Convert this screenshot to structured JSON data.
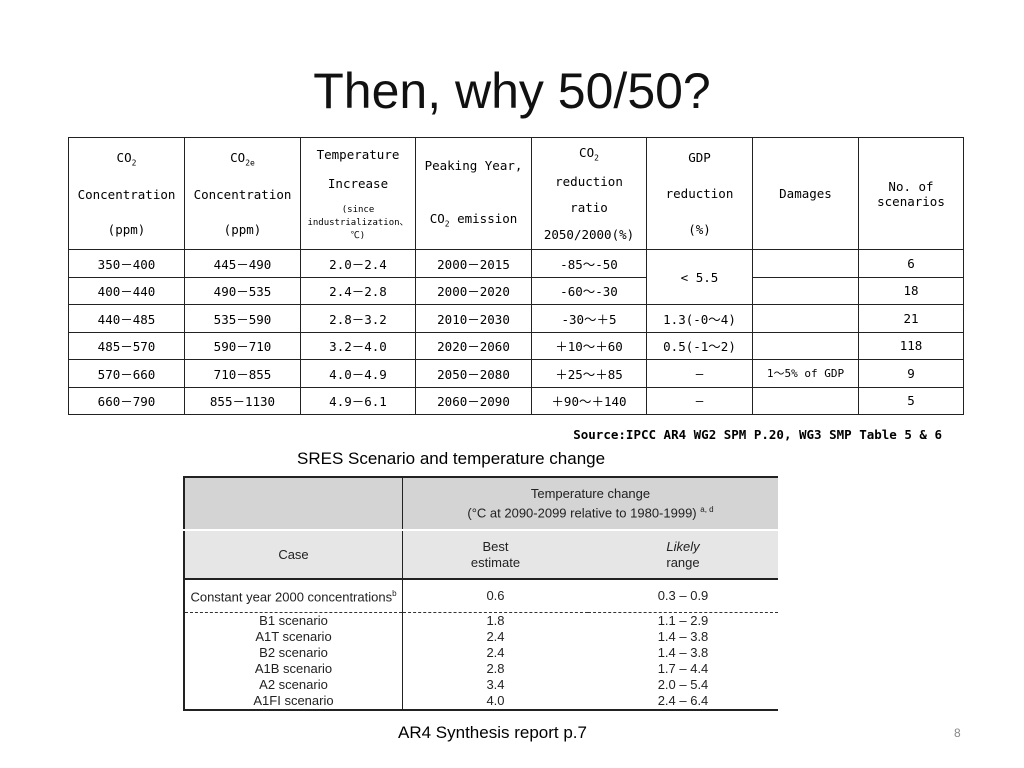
{
  "title": "Then, why 50/50?",
  "table1": {
    "headers": [
      [
        {
          "text": "CO",
          "sub": "2"
        },
        "Concentration",
        "(ppm)"
      ],
      [
        {
          "text": "CO",
          "sub": "2e"
        },
        "Concentration",
        "(ppm)"
      ],
      [
        "Temperature",
        "Increase",
        "(since industrialization、℃)"
      ],
      [
        "Peaking Year,",
        {
          "text": "CO",
          "sub": "2",
          "after": " emission"
        }
      ],
      [
        {
          "text": "CO",
          "sub": "2"
        },
        "reduction",
        "ratio",
        "2050/2000(%)"
      ],
      [
        "GDP",
        "reduction",
        "(%)"
      ],
      [
        "Damages"
      ],
      [
        "No. of scenarios"
      ]
    ],
    "rows": [
      [
        "350－400",
        "445－490",
        "2.0－2.4",
        "2000－2015",
        "-85～-50",
        "< 5.5",
        null,
        "6"
      ],
      [
        "400－440",
        "490－535",
        "2.4－2.8",
        "2000－2020",
        "-60～-30",
        null,
        null,
        "18"
      ],
      [
        "440－485",
        "535－590",
        "2.8－3.2",
        "2010－2030",
        "-30～＋5",
        "1.3(-0～4)",
        null,
        "21"
      ],
      [
        "485－570",
        "590－710",
        "3.2－4.0",
        "2020－2060",
        "＋10～＋60",
        "0.5(-1～2)",
        null,
        "118"
      ],
      [
        "570－660",
        "710－855",
        "4.0－4.9",
        "2050－2080",
        "＋25～＋85",
        "—",
        "1～5% of GDP",
        "9"
      ],
      [
        "660－790",
        "855－1130",
        "4.9－6.1",
        "2060－2090",
        "＋90～＋140",
        "—",
        null,
        "5"
      ]
    ],
    "source": "Source:IPCC AR4 WG2 SPM P.20, WG3 SMP Table 5 & 6"
  },
  "caption1": "SRES Scenario and temperature change",
  "table2": {
    "group_title": "Temperature change",
    "group_note": "(°C at 2090-2099 relative to 1980-1999)",
    "group_sup": "a, d",
    "columns": [
      [
        "Case"
      ],
      [
        "Best",
        "estimate"
      ],
      [
        "Likely",
        "range"
      ]
    ],
    "rows": [
      {
        "case": "Constant year 2000 concentrations",
        "sup": "b",
        "best": "0.6",
        "range": "0.3 – 0.9"
      },
      {
        "case": "B1 scenario",
        "best": "1.8",
        "range": "1.1 – 2.9"
      },
      {
        "case": "A1T scenario",
        "best": "2.4",
        "range": "1.4 – 3.8"
      },
      {
        "case": "B2 scenario",
        "best": "2.4",
        "range": "1.4 – 3.8"
      },
      {
        "case": "A1B scenario",
        "best": "2.8",
        "range": "1.7 – 4.4"
      },
      {
        "case": "A2 scenario",
        "best": "3.4",
        "range": "2.0 – 5.4"
      },
      {
        "case": "A1FI scenario",
        "best": "4.0",
        "range": "2.4 – 6.4"
      }
    ]
  },
  "caption2": "AR4 Synthesis report p.7",
  "page_number": "8"
}
